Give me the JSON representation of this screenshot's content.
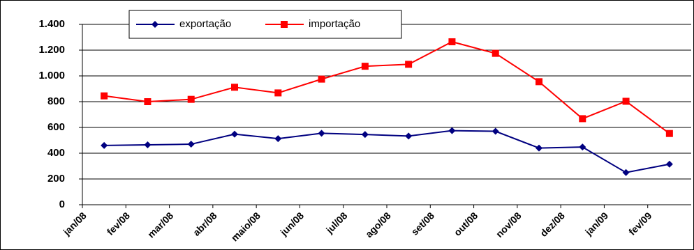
{
  "chart_data": {
    "type": "line",
    "categories": [
      "jan/08",
      "fev/08",
      "mar/08",
      "abr/08",
      "maio/08",
      "jun/08",
      "jul/08",
      "ago/08",
      "set/08",
      "out/08",
      "nov/08",
      "dez/08",
      "jan/09",
      "fev/09"
    ],
    "series": [
      {
        "name": "exportação",
        "color": "#000080",
        "marker": "diamond",
        "values": [
          460,
          465,
          470,
          548,
          513,
          555,
          545,
          533,
          575,
          570,
          440,
          448,
          250,
          315
        ]
      },
      {
        "name": "importação",
        "color": "#ff0000",
        "marker": "square",
        "values": [
          845,
          800,
          818,
          912,
          868,
          975,
          1075,
          1090,
          1265,
          1175,
          955,
          668,
          803,
          553
        ]
      }
    ],
    "ylim": [
      0,
      1400
    ],
    "yticks": [
      0,
      200,
      400,
      600,
      800,
      {
        "value": 1000,
        "label": "1.000"
      },
      {
        "value": 1200,
        "label": "1.200"
      },
      {
        "value": 1400,
        "label": "1.400"
      }
    ],
    "grid": true,
    "legend": "top"
  }
}
